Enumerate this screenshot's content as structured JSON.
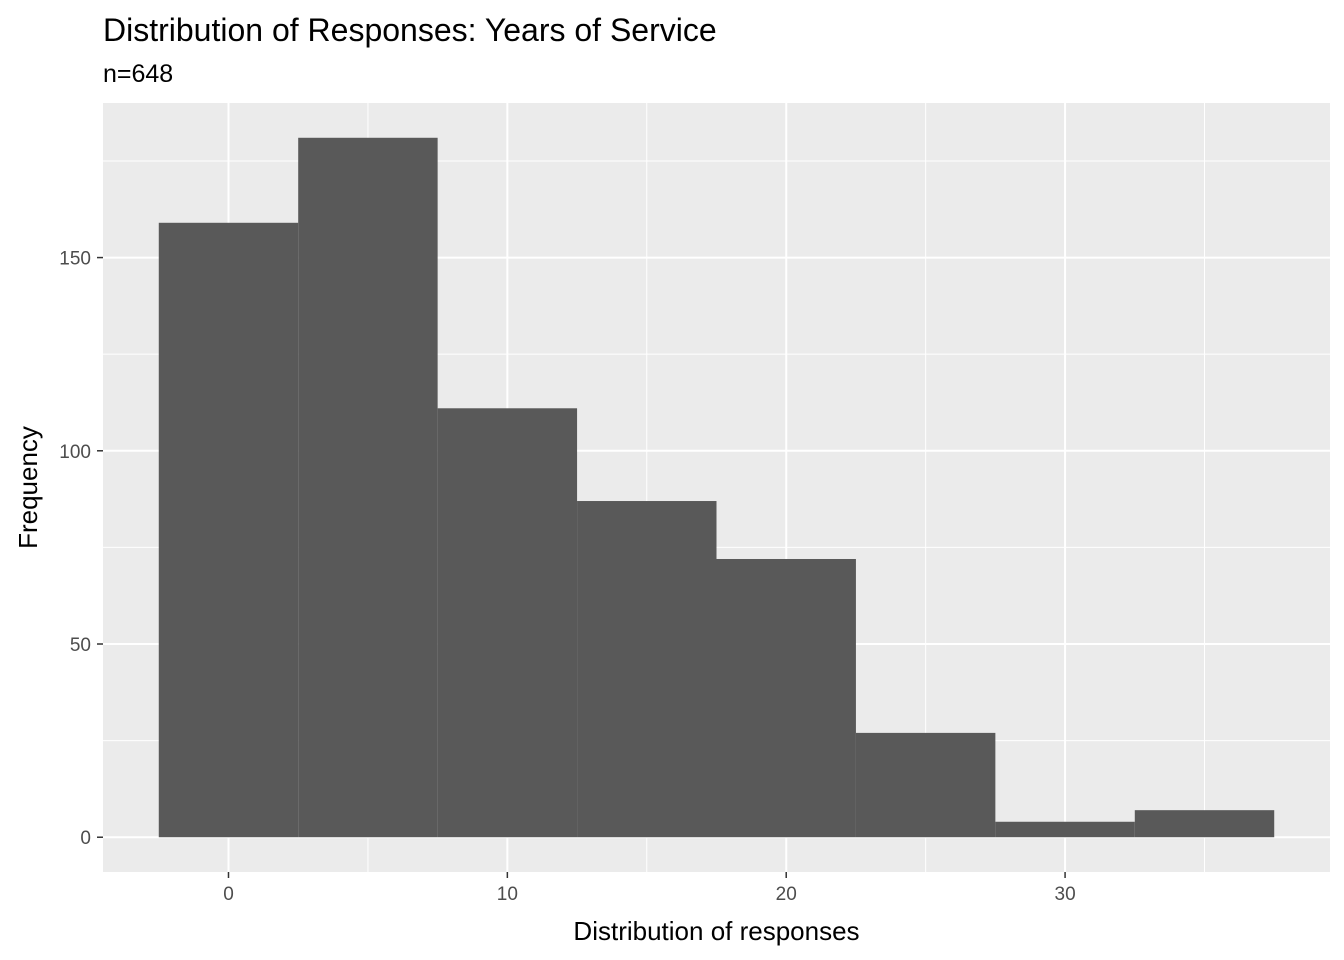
{
  "chart_data": {
    "type": "bar",
    "title": "Distribution of Responses: Years of Service",
    "subtitle": "n=648",
    "xlabel": "Distribution of responses",
    "ylabel": "Frequency",
    "xlim": [
      -4.5,
      39.5
    ],
    "ylim": [
      -9,
      190
    ],
    "x_ticks": [
      0,
      10,
      20,
      30
    ],
    "y_ticks": [
      0,
      50,
      100,
      150
    ],
    "grid": true,
    "bins": [
      {
        "x_start": -2.5,
        "x_end": 2.5,
        "count": 159
      },
      {
        "x_start": 2.5,
        "x_end": 7.5,
        "count": 181
      },
      {
        "x_start": 7.5,
        "x_end": 12.5,
        "count": 111
      },
      {
        "x_start": 12.5,
        "x_end": 17.5,
        "count": 87
      },
      {
        "x_start": 17.5,
        "x_end": 22.5,
        "count": 72
      },
      {
        "x_start": 22.5,
        "x_end": 27.5,
        "count": 27
      },
      {
        "x_start": 27.5,
        "x_end": 32.5,
        "count": 4
      },
      {
        "x_start": 32.5,
        "x_end": 37.5,
        "count": 7
      }
    ]
  },
  "colors": {
    "panel_background": "#ebebeb",
    "grid_major": "#ffffff",
    "bar_fill": "#595959",
    "tick_text": "#4d4d4d"
  }
}
